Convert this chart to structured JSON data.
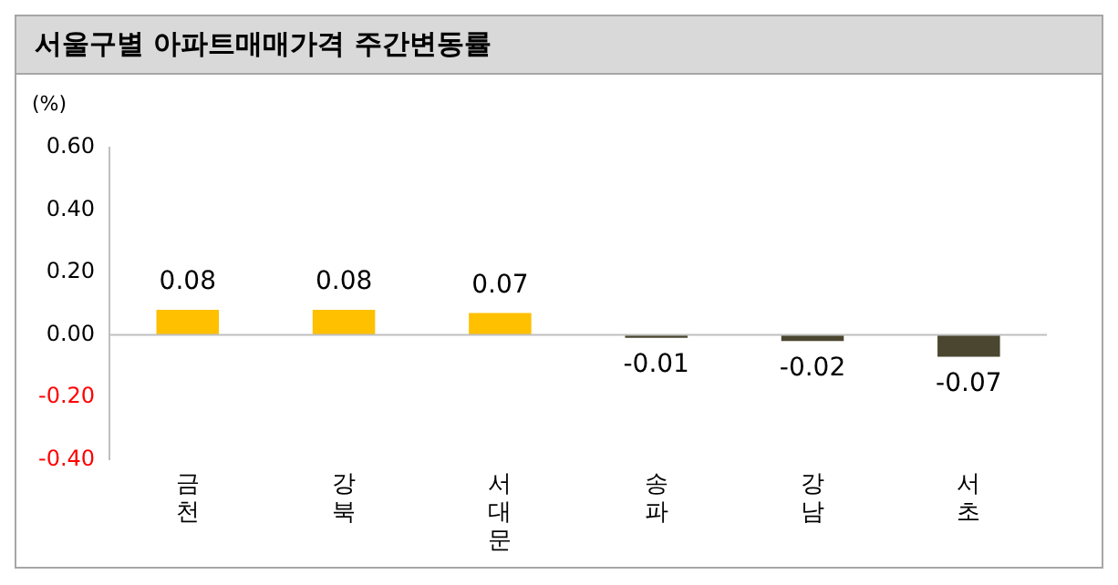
{
  "chart_data": {
    "type": "bar",
    "title": "서울구별 아파트매매가격 주간변동률",
    "ylabel": "(%)",
    "categories": [
      "금천",
      "강북",
      "서대문",
      "송파",
      "강남",
      "서초"
    ],
    "values": [
      0.08,
      0.08,
      0.07,
      -0.01,
      -0.02,
      -0.07
    ],
    "colors": [
      "#ffc000",
      "#ffc000",
      "#ffc000",
      "#4a4630",
      "#4a4630",
      "#4a4630"
    ],
    "ylim": [
      -0.4,
      0.6
    ],
    "yticks": [
      {
        "value": -0.4,
        "label": "-0.40"
      },
      {
        "value": -0.2,
        "label": "-0.20"
      },
      {
        "value": 0,
        "label": "0.00"
      },
      {
        "value": 0.2,
        "label": "0.20"
      },
      {
        "value": 0.4,
        "label": "0.40"
      },
      {
        "value": 0.6,
        "label": "0.60"
      }
    ],
    "ref_lines": [
      {
        "axis": "y",
        "value": 0,
        "color": "#bfbfbf"
      }
    ],
    "grid": false,
    "legend": false,
    "data_labels": true
  }
}
